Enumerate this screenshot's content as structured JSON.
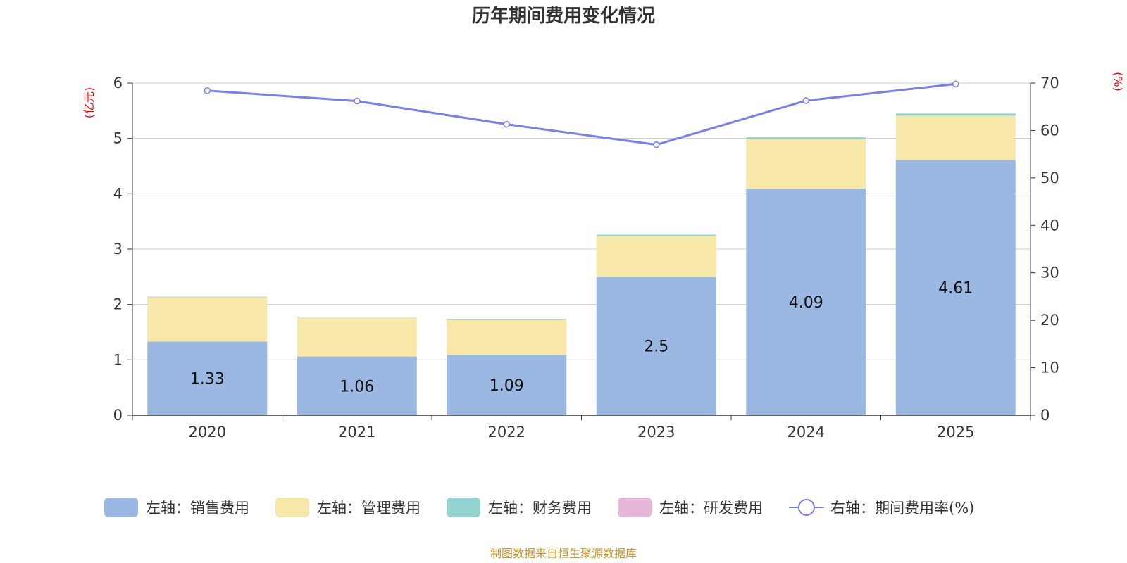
{
  "chart_data": {
    "type": "bar",
    "title": "历年期间费用变化情况",
    "categories": [
      "2020",
      "2021",
      "2022",
      "2023",
      "2024",
      "2025"
    ],
    "left_axis": {
      "unit": "(亿元)",
      "ylim": [
        0,
        6
      ],
      "ticks": [
        "0",
        "1",
        "2",
        "3",
        "4",
        "5",
        "6"
      ]
    },
    "right_axis": {
      "unit": "(%)",
      "ylim": [
        0,
        70
      ],
      "ticks": [
        "0",
        "10",
        "20",
        "30",
        "40",
        "50",
        "60",
        "70"
      ]
    },
    "series": [
      {
        "name": "左轴：销售费用",
        "axis": "left",
        "kind": "bar",
        "color": "#9bb8e2",
        "values": [
          1.33,
          1.06,
          1.09,
          2.5,
          4.09,
          4.61
        ],
        "labels": [
          "1.33",
          "1.06",
          "1.09",
          "2.5",
          "4.09",
          "4.61"
        ]
      },
      {
        "name": "左轴：管理费用",
        "axis": "left",
        "kind": "bar",
        "color": "#f7e7a8",
        "values": [
          0.8,
          0.71,
          0.64,
          0.73,
          0.9,
          0.8
        ]
      },
      {
        "name": "左轴：财务费用",
        "axis": "left",
        "kind": "bar",
        "color": "#95d3d3",
        "values": [
          0.01,
          0.01,
          0.01,
          0.03,
          0.03,
          0.04
        ]
      },
      {
        "name": "左轴：研发费用",
        "axis": "left",
        "kind": "bar",
        "color": "#e6b7d9",
        "values": [
          0,
          0,
          0,
          0,
          0,
          0
        ]
      },
      {
        "name": "右轴：期间费用率(%)",
        "axis": "right",
        "kind": "line",
        "color": "#7b7fe8",
        "values": [
          68.4,
          66.2,
          61.3,
          57.0,
          66.3,
          69.8
        ]
      }
    ],
    "grid": true,
    "legend_position": "bottom"
  },
  "source_note": "制图数据来自恒生聚源数据库"
}
